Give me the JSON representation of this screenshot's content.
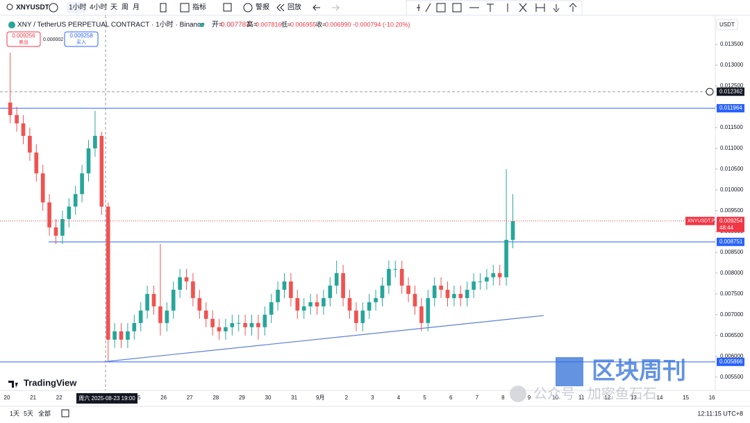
{
  "toolbar": {
    "symbol": "XNYUSDT",
    "intervals": [
      "1小时",
      "4小时",
      "天",
      "周",
      "月"
    ],
    "indicators": "指标",
    "alert": "警报",
    "replay": "回放"
  },
  "legend": {
    "title": "XNY / TetherUS PERPETUAL CONTRACT · 1小时 · Binance",
    "open_label": "开=",
    "open": "0.007783",
    "high_label": "高=",
    "high": "0.007816",
    "low_label": "低=",
    "low": "0.006955",
    "close_label": "收=",
    "close": "0.006990",
    "change": "-0.000794 (-10.20%)"
  },
  "trade": {
    "sell_price": "0.009256",
    "sell": "卖出",
    "spread": "0.000002",
    "buy_price": "0.009258",
    "buy": "买入"
  },
  "currency": "USDT",
  "branding": "TradingView",
  "watermark": {
    "account": "公众号 · 加密鱼石石",
    "brand": "区块周刊"
  },
  "footer": {
    "ranges": [
      "1天",
      "5天",
      "全部"
    ],
    "clock": "12:11:15 UTC+8"
  },
  "chart_data": {
    "type": "candlestick",
    "up_color": "#26a69a",
    "down_color": "#ef5350",
    "x_labels": [
      "20",
      "21",
      "22",
      null,
      null,
      "25",
      "26",
      "27",
      "28",
      "29",
      "30",
      "31",
      "9月",
      "2",
      "3",
      "4",
      "5",
      "6",
      "7",
      "8",
      "9",
      "10",
      "11",
      "12",
      "13",
      "14",
      "15",
      "16"
    ],
    "crosshair_label": "周六 2025-08-23 19:00",
    "open": [
      0.0121,
      0.0118,
      0.0116,
      0.0113,
      0.0109,
      0.0104,
      0.0097,
      0.0091,
      0.0089,
      0.0093,
      0.0096,
      0.0099,
      0.0104,
      0.011,
      0.0113,
      0.0096,
      0.0064,
      0.0066,
      0.0064,
      0.0066,
      0.0068,
      0.0071,
      0.0075,
      0.0072,
      0.0068,
      0.0071,
      0.0076,
      0.0079,
      0.0078,
      0.0074,
      0.0071,
      0.0069,
      0.0067,
      0.0066,
      0.0067,
      0.0068,
      0.0068,
      0.0067,
      0.0068,
      0.0067,
      0.007,
      0.0073,
      0.0076,
      0.0078,
      0.0074,
      0.0071,
      0.0072,
      0.0073,
      0.0072,
      0.0074,
      0.0077,
      0.008,
      0.0074,
      0.0071,
      0.0068,
      0.0071,
      0.0073,
      0.0074,
      0.0077,
      0.0081,
      0.0081,
      0.0077,
      0.0075,
      0.0072,
      0.0068,
      0.0074,
      0.0077,
      0.0076,
      0.0074,
      0.0075,
      0.0074,
      0.0076,
      0.0078,
      0.0078,
      0.0079,
      0.008,
      0.0079,
      0.0088
    ],
    "high": [
      0.0133,
      0.012,
      0.0118,
      0.0115,
      0.0111,
      0.0106,
      0.0099,
      0.0093,
      0.0095,
      0.0098,
      0.0101,
      0.0106,
      0.0112,
      0.0119,
      0.0114,
      0.0097,
      0.0068,
      0.0068,
      0.0068,
      0.007,
      0.0073,
      0.0077,
      0.0077,
      0.0087,
      0.0073,
      0.0078,
      0.0081,
      0.0081,
      0.008,
      0.0076,
      0.0073,
      0.0071,
      0.0069,
      0.0069,
      0.007,
      0.007,
      0.007,
      0.007,
      0.007,
      0.0072,
      0.0075,
      0.0078,
      0.008,
      0.008,
      0.0076,
      0.0074,
      0.0075,
      0.0075,
      0.0076,
      0.0079,
      0.0083,
      0.0082,
      0.0076,
      0.0073,
      0.0073,
      0.0075,
      0.0076,
      0.0079,
      0.0083,
      0.0083,
      0.0083,
      0.0079,
      0.0077,
      0.0074,
      0.0076,
      0.0079,
      0.0079,
      0.0078,
      0.0077,
      0.0077,
      0.0078,
      0.008,
      0.008,
      0.0081,
      0.0082,
      0.0082,
      0.0105,
      0.0099
    ],
    "low": [
      0.0116,
      0.0114,
      0.0111,
      0.0107,
      0.0102,
      0.0095,
      0.0089,
      0.0087,
      0.0087,
      0.0091,
      0.0094,
      0.0097,
      0.0102,
      0.0108,
      0.0094,
      0.0059,
      0.0062,
      0.0062,
      0.0062,
      0.0064,
      0.0066,
      0.0069,
      0.007,
      0.0065,
      0.0066,
      0.0069,
      0.0074,
      0.0076,
      0.0072,
      0.0069,
      0.0067,
      0.0065,
      0.0064,
      0.0064,
      0.0065,
      0.0066,
      0.0065,
      0.0065,
      0.0064,
      0.0065,
      0.0068,
      0.0071,
      0.0074,
      0.0072,
      0.0069,
      0.0069,
      0.007,
      0.007,
      0.007,
      0.0072,
      0.0075,
      0.0072,
      0.0069,
      0.0066,
      0.0066,
      0.0069,
      0.0071,
      0.0072,
      0.0075,
      0.0079,
      0.0075,
      0.0073,
      0.007,
      0.0066,
      0.0066,
      0.0072,
      0.0074,
      0.0072,
      0.0072,
      0.0072,
      0.0072,
      0.0074,
      0.0076,
      0.0076,
      0.0077,
      0.0077,
      0.0077,
      0.0086
    ],
    "close": [
      0.0118,
      0.0116,
      0.0113,
      0.0109,
      0.0104,
      0.0097,
      0.0091,
      0.0089,
      0.0093,
      0.0096,
      0.0099,
      0.0104,
      0.011,
      0.0113,
      0.0096,
      0.0064,
      0.0066,
      0.0064,
      0.0066,
      0.0068,
      0.0071,
      0.0075,
      0.0072,
      0.0068,
      0.0071,
      0.0076,
      0.0079,
      0.0078,
      0.0074,
      0.0071,
      0.0069,
      0.0067,
      0.0066,
      0.0067,
      0.0068,
      0.0068,
      0.0067,
      0.0068,
      0.0067,
      0.007,
      0.0073,
      0.0076,
      0.0078,
      0.0074,
      0.0071,
      0.0072,
      0.0073,
      0.0072,
      0.0074,
      0.0077,
      0.008,
      0.0074,
      0.0071,
      0.0068,
      0.0071,
      0.0073,
      0.0074,
      0.0077,
      0.0081,
      0.0081,
      0.0077,
      0.0075,
      0.0072,
      0.0068,
      0.0074,
      0.0077,
      0.0076,
      0.0074,
      0.0075,
      0.0074,
      0.0076,
      0.0078,
      0.0078,
      0.0079,
      0.008,
      0.0079,
      0.0088,
      0.00925
    ],
    "ylim": [
      0.00523,
      0.0142
    ],
    "yticks": [
      {
        "value": 0.0055,
        "label": "0.005500"
      },
      {
        "value": 0.006,
        "label": "0.006000"
      },
      {
        "value": 0.0065,
        "label": "0.006500"
      },
      {
        "value": 0.007,
        "label": "0.007000"
      },
      {
        "value": 0.0075,
        "label": "0.007500"
      },
      {
        "value": 0.008,
        "label": "0.008000"
      },
      {
        "value": 0.0085,
        "label": "0.008500"
      },
      {
        "value": 0.009,
        "label": "0.009000"
      },
      {
        "value": 0.0095,
        "label": "0.009500"
      },
      {
        "value": 0.01,
        "label": "0.010000"
      },
      {
        "value": 0.0105,
        "label": "0.010500"
      },
      {
        "value": 0.011,
        "label": "0.011000"
      },
      {
        "value": 0.0115,
        "label": "0.011500"
      },
      {
        "value": 0.012,
        "label": "0.012000"
      },
      {
        "value": 0.0125,
        "label": "0.012500"
      },
      {
        "value": 0.013,
        "label": "0.013000"
      },
      {
        "value": 0.0135,
        "label": "0.013500"
      }
    ],
    "price_lines": [
      {
        "value": 0.011964,
        "color": "#2962ff"
      },
      {
        "value": 0.008751,
        "color": "#2962ff"
      },
      {
        "value": 0.005866,
        "color": "#2962ff"
      }
    ],
    "alert_line": {
      "value": 0.012362,
      "color": "#9598a1"
    },
    "last_price": {
      "value": 0.009254,
      "symbol": "XNYUSDT.P",
      "countdown": "48:44",
      "color": "#f23645"
    },
    "trendline": {
      "values": [
        0.00587,
        0.00698
      ],
      "color": "#5b7fd6"
    }
  }
}
